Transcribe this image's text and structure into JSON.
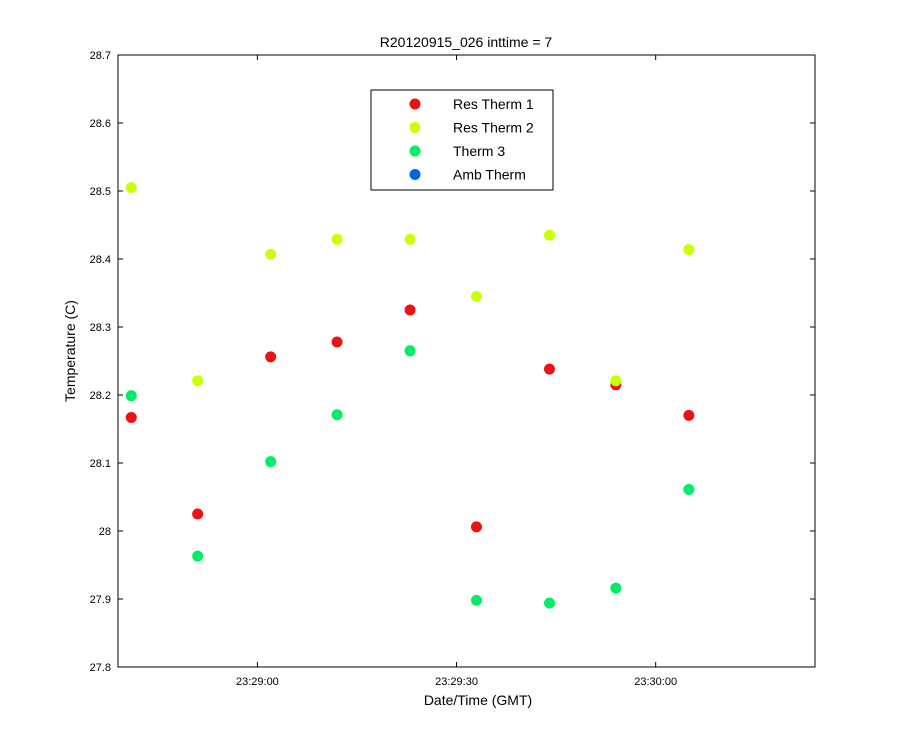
{
  "chart_data": {
    "type": "scatter",
    "title": "R20120915_026 inttime = 7",
    "xlabel": "Date/Time (GMT)",
    "ylabel": "Temperature (C)",
    "xlim": [
      "23:28:39",
      "23:30:24"
    ],
    "ylim": [
      27.8,
      28.7
    ],
    "x_ticks": [
      "23:29:00",
      "23:29:30",
      "23:30:00"
    ],
    "y_ticks": [
      "27.8",
      "27.9",
      "28",
      "28.1",
      "28.2",
      "28.3",
      "28.4",
      "28.5",
      "28.6",
      "28.7"
    ],
    "grid": false,
    "legend_position": "top-center",
    "x": [
      "23:28:41",
      "23:28:51",
      "23:29:02",
      "23:29:12",
      "23:29:23",
      "23:29:33",
      "23:29:44",
      "23:29:54",
      "23:30:05"
    ],
    "series": [
      {
        "name": "Res Therm 1",
        "color": "#ee1111",
        "values": [
          28.167,
          28.025,
          28.256,
          28.278,
          28.325,
          28.006,
          28.238,
          28.215,
          28.17
        ]
      },
      {
        "name": "Res Therm 2",
        "color": "#ccff00",
        "values": [
          28.505,
          28.221,
          28.407,
          28.429,
          28.429,
          28.345,
          28.435,
          28.221,
          28.414
        ]
      },
      {
        "name": "Therm 3",
        "color": "#00ee66",
        "values": [
          28.199,
          27.963,
          28.102,
          28.171,
          28.265,
          27.898,
          27.894,
          27.916,
          28.061
        ]
      },
      {
        "name": "Amb Therm",
        "color": "#0066dd",
        "values": []
      }
    ]
  }
}
